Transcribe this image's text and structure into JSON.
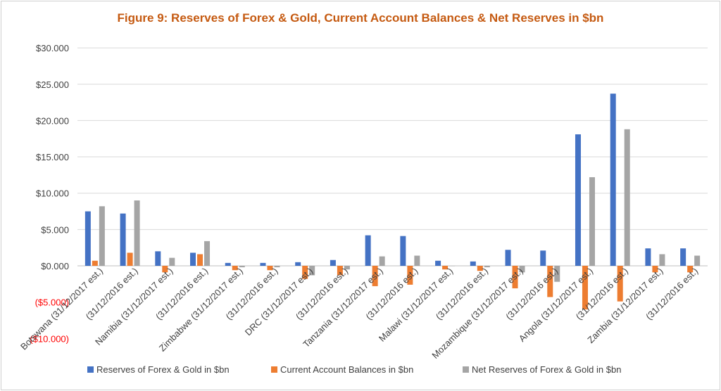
{
  "chart_data": {
    "type": "bar",
    "title": "Figure 9:  Reserves of Forex & Gold, Current Account  Balances & Net Reserves in $bn",
    "categories": [
      "Botswana (31/12/2017 est.)",
      "(31/12/2016 est.)",
      "Namibia  (31/12/2017 est.)",
      "(31/12/2016 est.)",
      "Zimbabwe (31/12/2017 est.)",
      "(31/12/2016 est.)",
      "DRC (31/12/2017 est.)",
      "(31/12/2016 est.)",
      "Tanzania (31/12/2017 est.)",
      "(31/12/2016 est.)",
      "Malawi (31/12/2017 est.)",
      "(31/12/2016 est.)",
      "Mozambique (31/12/2017 est.)",
      "(31/12/2016 est.)",
      "Angola (31/12/2017 est.)",
      "(31/12/2016 est.)",
      "Zambia (31/12/2017 est.)",
      "(31/12/2016 est.)"
    ],
    "series": [
      {
        "name": "Reserves of Forex & Gold in $bn",
        "color": "#4472c4",
        "values": [
          7.5,
          7.2,
          2.0,
          1.8,
          0.4,
          0.4,
          0.5,
          0.8,
          4.2,
          4.1,
          0.7,
          0.6,
          2.2,
          2.1,
          18.1,
          23.7,
          2.4,
          2.4
        ]
      },
      {
        "name": "Current Account Balances in $bn",
        "color": "#ed7d31",
        "values": [
          0.7,
          1.8,
          -0.9,
          1.6,
          -0.6,
          -0.6,
          -1.8,
          -1.3,
          -2.8,
          -2.6,
          -0.5,
          -0.7,
          -3.1,
          -4.3,
          -6.0,
          -4.9,
          -0.9,
          -0.9
        ]
      },
      {
        "name": "Net Reserves of Forex & Gold in $bn",
        "color": "#a5a5a5",
        "values": [
          8.2,
          9.0,
          1.1,
          3.4,
          -0.2,
          -0.2,
          -1.3,
          -0.5,
          1.3,
          1.4,
          0.0,
          -0.2,
          -0.9,
          -2.2,
          12.2,
          18.8,
          1.6,
          1.4
        ]
      }
    ],
    "yticks": [
      "$30.000",
      "$25.000",
      "$20.000",
      "$15.000",
      "$10.000",
      "$5.000",
      "$0.000",
      "($5.000)",
      "($10.000)"
    ],
    "ytick_values": [
      30,
      25,
      20,
      15,
      10,
      5,
      0,
      -5,
      -10
    ],
    "negative_tick_color": "#ff0000",
    "ylim": [
      -10,
      30
    ],
    "grid": true,
    "legend_position": "bottom",
    "xlabel": "",
    "ylabel": ""
  }
}
